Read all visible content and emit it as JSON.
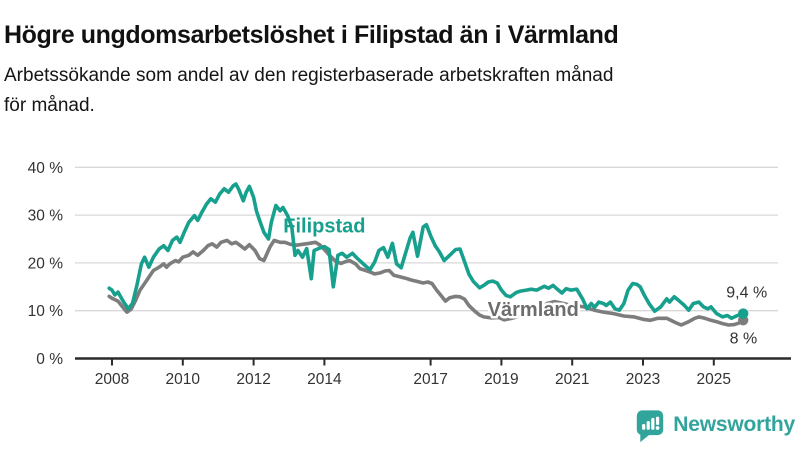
{
  "header": {
    "title": "Högre ungdomsarbetslöshet i Filipstad än i Värmland",
    "subtitle_lines": [
      "Arbetssökande som andel av den registerbaserade arbetskraften månad",
      "för månad."
    ]
  },
  "chart_data": {
    "type": "line",
    "x_unit": "decimal_year",
    "grid": "horizontal",
    "xlim": [
      2007.9,
      2026.3
    ],
    "ylim": [
      0,
      42
    ],
    "x_ticks": [
      {
        "value": 2008,
        "label": "2008"
      },
      {
        "value": 2010,
        "label": "2010"
      },
      {
        "value": 2012,
        "label": "2012"
      },
      {
        "value": 2014,
        "label": "2014"
      },
      {
        "value": 2017,
        "label": "2017"
      },
      {
        "value": 2019,
        "label": "2019"
      },
      {
        "value": 2021,
        "label": "2021"
      },
      {
        "value": 2023,
        "label": "2023"
      },
      {
        "value": 2025,
        "label": "2025"
      }
    ],
    "y_ticks": [
      {
        "value": 0,
        "label": "0 %"
      },
      {
        "value": 10,
        "label": "10 %"
      },
      {
        "value": 20,
        "label": "20 %"
      },
      {
        "value": 30,
        "label": "30 %"
      },
      {
        "value": 40,
        "label": "40 %"
      }
    ],
    "colors": {
      "gridline": "#d9d9d9",
      "axis": "#2b2b2b",
      "tick_text": "#333333"
    },
    "series": [
      {
        "name": "Värmland",
        "color": "#7d7d7d",
        "label_color": "#6d6d6d",
        "label_halo": "#ffffff",
        "label_anchor": {
          "x": 2019.9,
          "y": 10.4
        },
        "end_label": "8 %",
        "points": [
          [
            2007.92,
            13.0
          ],
          [
            2008.0,
            12.6
          ],
          [
            2008.17,
            12.0
          ],
          [
            2008.33,
            10.5
          ],
          [
            2008.42,
            9.7
          ],
          [
            2008.54,
            10.3
          ],
          [
            2008.67,
            12.2
          ],
          [
            2008.79,
            14.3
          ],
          [
            2008.92,
            15.7
          ],
          [
            2009.04,
            17.0
          ],
          [
            2009.17,
            18.4
          ],
          [
            2009.33,
            19.1
          ],
          [
            2009.46,
            19.8
          ],
          [
            2009.54,
            19.1
          ],
          [
            2009.63,
            19.8
          ],
          [
            2009.79,
            20.5
          ],
          [
            2009.88,
            20.2
          ],
          [
            2010.0,
            21.2
          ],
          [
            2010.17,
            21.6
          ],
          [
            2010.29,
            22.3
          ],
          [
            2010.42,
            21.6
          ],
          [
            2010.58,
            22.6
          ],
          [
            2010.71,
            23.6
          ],
          [
            2010.83,
            24.0
          ],
          [
            2010.96,
            23.3
          ],
          [
            2011.08,
            24.3
          ],
          [
            2011.25,
            24.7
          ],
          [
            2011.38,
            24.0
          ],
          [
            2011.5,
            24.3
          ],
          [
            2011.63,
            23.6
          ],
          [
            2011.75,
            22.9
          ],
          [
            2011.88,
            23.8
          ],
          [
            2012.04,
            22.6
          ],
          [
            2012.17,
            20.9
          ],
          [
            2012.29,
            20.5
          ],
          [
            2012.46,
            23.3
          ],
          [
            2012.58,
            24.7
          ],
          [
            2012.75,
            24.3
          ],
          [
            2012.88,
            24.3
          ],
          [
            2013.04,
            23.9
          ],
          [
            2013.21,
            23.7
          ],
          [
            2013.38,
            23.9
          ],
          [
            2013.58,
            24.1
          ],
          [
            2013.75,
            24.3
          ],
          [
            2013.88,
            23.7
          ],
          [
            2014.0,
            22.8
          ],
          [
            2014.17,
            21.4
          ],
          [
            2014.29,
            20.5
          ],
          [
            2014.46,
            19.9
          ],
          [
            2014.58,
            20.2
          ],
          [
            2014.71,
            20.5
          ],
          [
            2014.88,
            19.8
          ],
          [
            2015.0,
            18.8
          ],
          [
            2015.17,
            18.4
          ],
          [
            2015.29,
            18.1
          ],
          [
            2015.42,
            17.7
          ],
          [
            2015.58,
            17.9
          ],
          [
            2015.71,
            18.3
          ],
          [
            2015.83,
            18.4
          ],
          [
            2015.96,
            17.4
          ],
          [
            2016.13,
            17.1
          ],
          [
            2016.29,
            16.8
          ],
          [
            2016.46,
            16.4
          ],
          [
            2016.63,
            16.1
          ],
          [
            2016.79,
            15.8
          ],
          [
            2016.92,
            16.0
          ],
          [
            2017.04,
            15.7
          ],
          [
            2017.17,
            14.3
          ],
          [
            2017.29,
            13.2
          ],
          [
            2017.42,
            12.0
          ],
          [
            2017.54,
            12.7
          ],
          [
            2017.71,
            13.0
          ],
          [
            2017.83,
            12.9
          ],
          [
            2017.96,
            12.4
          ],
          [
            2018.08,
            11.1
          ],
          [
            2018.25,
            9.9
          ],
          [
            2018.38,
            9.1
          ],
          [
            2018.5,
            8.7
          ],
          [
            2018.71,
            8.5
          ],
          [
            2018.92,
            8.6
          ],
          [
            2019.08,
            8.1
          ],
          [
            2019.29,
            8.4
          ],
          [
            2019.5,
            8.8
          ],
          [
            2019.71,
            9.2
          ],
          [
            2019.92,
            9.7
          ],
          [
            2020.13,
            10.4
          ],
          [
            2020.29,
            11.5
          ],
          [
            2020.5,
            11.9
          ],
          [
            2020.71,
            11.6
          ],
          [
            2020.92,
            11.2
          ],
          [
            2021.13,
            11.0
          ],
          [
            2021.33,
            10.8
          ],
          [
            2021.63,
            10.1
          ],
          [
            2021.88,
            9.7
          ],
          [
            2022.17,
            9.4
          ],
          [
            2022.46,
            8.9
          ],
          [
            2022.75,
            8.7
          ],
          [
            2023.0,
            8.2
          ],
          [
            2023.21,
            8.0
          ],
          [
            2023.42,
            8.4
          ],
          [
            2023.67,
            8.4
          ],
          [
            2023.92,
            7.5
          ],
          [
            2024.08,
            7.0
          ],
          [
            2024.29,
            7.7
          ],
          [
            2024.46,
            8.4
          ],
          [
            2024.58,
            8.7
          ],
          [
            2024.75,
            8.4
          ],
          [
            2024.92,
            8.0
          ],
          [
            2025.08,
            7.7
          ],
          [
            2025.25,
            7.3
          ],
          [
            2025.42,
            7.0
          ],
          [
            2025.58,
            7.1
          ],
          [
            2025.71,
            7.4
          ],
          [
            2025.83,
            8.0
          ]
        ]
      },
      {
        "name": "Filipstad",
        "color": "#17a08d",
        "label_color": "#17a08d",
        "label_halo": "none",
        "label_anchor": {
          "x": 2014.0,
          "y": 27.8
        },
        "end_label": "9,4 %",
        "points": [
          [
            2007.92,
            14.7
          ],
          [
            2008.0,
            14.3
          ],
          [
            2008.08,
            13.3
          ],
          [
            2008.17,
            13.9
          ],
          [
            2008.33,
            11.8
          ],
          [
            2008.46,
            10.4
          ],
          [
            2008.58,
            11.5
          ],
          [
            2008.71,
            15.5
          ],
          [
            2008.83,
            19.8
          ],
          [
            2008.92,
            21.2
          ],
          [
            2009.04,
            19.1
          ],
          [
            2009.17,
            21.2
          ],
          [
            2009.33,
            22.9
          ],
          [
            2009.46,
            23.6
          ],
          [
            2009.58,
            22.6
          ],
          [
            2009.71,
            24.7
          ],
          [
            2009.83,
            25.4
          ],
          [
            2009.92,
            24.3
          ],
          [
            2010.04,
            26.4
          ],
          [
            2010.17,
            28.5
          ],
          [
            2010.33,
            29.9
          ],
          [
            2010.42,
            28.9
          ],
          [
            2010.54,
            30.6
          ],
          [
            2010.67,
            32.3
          ],
          [
            2010.79,
            33.4
          ],
          [
            2010.92,
            32.7
          ],
          [
            2011.04,
            34.4
          ],
          [
            2011.17,
            35.5
          ],
          [
            2011.29,
            34.8
          ],
          [
            2011.42,
            36.1
          ],
          [
            2011.5,
            36.5
          ],
          [
            2011.58,
            35.4
          ],
          [
            2011.71,
            33.0
          ],
          [
            2011.79,
            34.8
          ],
          [
            2011.88,
            36.0
          ],
          [
            2012.0,
            33.7
          ],
          [
            2012.08,
            30.9
          ],
          [
            2012.17,
            28.9
          ],
          [
            2012.29,
            26.4
          ],
          [
            2012.42,
            25.0
          ],
          [
            2012.5,
            28.5
          ],
          [
            2012.63,
            32.0
          ],
          [
            2012.75,
            30.9
          ],
          [
            2012.83,
            31.6
          ],
          [
            2012.96,
            29.9
          ],
          [
            2013.08,
            27.5
          ],
          [
            2013.17,
            21.6
          ],
          [
            2013.25,
            22.6
          ],
          [
            2013.38,
            21.2
          ],
          [
            2013.5,
            23.0
          ],
          [
            2013.63,
            16.7
          ],
          [
            2013.71,
            22.6
          ],
          [
            2013.83,
            23.0
          ],
          [
            2014.0,
            23.4
          ],
          [
            2014.13,
            22.8
          ],
          [
            2014.25,
            15.0
          ],
          [
            2014.38,
            21.6
          ],
          [
            2014.5,
            22.0
          ],
          [
            2014.63,
            21.2
          ],
          [
            2014.79,
            22.0
          ],
          [
            2014.92,
            21.0
          ],
          [
            2015.04,
            20.2
          ],
          [
            2015.17,
            19.3
          ],
          [
            2015.29,
            18.6
          ],
          [
            2015.42,
            20.2
          ],
          [
            2015.54,
            22.6
          ],
          [
            2015.67,
            23.2
          ],
          [
            2015.79,
            21.2
          ],
          [
            2015.92,
            24.1
          ],
          [
            2016.04,
            19.8
          ],
          [
            2016.17,
            19.0
          ],
          [
            2016.33,
            23.0
          ],
          [
            2016.42,
            25.2
          ],
          [
            2016.5,
            26.4
          ],
          [
            2016.63,
            21.4
          ],
          [
            2016.79,
            27.5
          ],
          [
            2016.88,
            28.0
          ],
          [
            2017.0,
            25.7
          ],
          [
            2017.13,
            23.6
          ],
          [
            2017.25,
            22.3
          ],
          [
            2017.38,
            20.5
          ],
          [
            2017.54,
            21.6
          ],
          [
            2017.71,
            22.8
          ],
          [
            2017.83,
            22.9
          ],
          [
            2017.96,
            20.2
          ],
          [
            2018.08,
            17.7
          ],
          [
            2018.21,
            16.1
          ],
          [
            2018.38,
            14.8
          ],
          [
            2018.5,
            15.3
          ],
          [
            2018.63,
            16.0
          ],
          [
            2018.75,
            16.2
          ],
          [
            2018.88,
            15.8
          ],
          [
            2019.0,
            14.3
          ],
          [
            2019.13,
            13.2
          ],
          [
            2019.25,
            12.9
          ],
          [
            2019.42,
            13.8
          ],
          [
            2019.54,
            14.1
          ],
          [
            2019.71,
            14.3
          ],
          [
            2019.83,
            14.5
          ],
          [
            2020.0,
            14.3
          ],
          [
            2020.21,
            15.1
          ],
          [
            2020.33,
            14.7
          ],
          [
            2020.46,
            15.3
          ],
          [
            2020.58,
            14.5
          ],
          [
            2020.71,
            13.7
          ],
          [
            2020.83,
            14.6
          ],
          [
            2020.96,
            14.3
          ],
          [
            2021.13,
            14.5
          ],
          [
            2021.29,
            12.5
          ],
          [
            2021.42,
            10.4
          ],
          [
            2021.54,
            11.5
          ],
          [
            2021.63,
            10.7
          ],
          [
            2021.75,
            11.8
          ],
          [
            2021.88,
            11.5
          ],
          [
            2021.96,
            11.1
          ],
          [
            2022.08,
            11.8
          ],
          [
            2022.21,
            10.4
          ],
          [
            2022.33,
            10.1
          ],
          [
            2022.46,
            11.5
          ],
          [
            2022.58,
            14.3
          ],
          [
            2022.71,
            15.7
          ],
          [
            2022.83,
            15.5
          ],
          [
            2022.92,
            15.0
          ],
          [
            2023.04,
            13.2
          ],
          [
            2023.17,
            11.5
          ],
          [
            2023.33,
            9.9
          ],
          [
            2023.5,
            10.8
          ],
          [
            2023.67,
            12.5
          ],
          [
            2023.75,
            11.8
          ],
          [
            2023.88,
            12.9
          ],
          [
            2024.0,
            12.2
          ],
          [
            2024.17,
            11.1
          ],
          [
            2024.29,
            10.1
          ],
          [
            2024.42,
            11.5
          ],
          [
            2024.58,
            11.8
          ],
          [
            2024.71,
            10.8
          ],
          [
            2024.83,
            10.4
          ],
          [
            2024.92,
            10.8
          ],
          [
            2025.08,
            9.4
          ],
          [
            2025.25,
            8.7
          ],
          [
            2025.38,
            9.0
          ],
          [
            2025.5,
            8.4
          ],
          [
            2025.67,
            9.0
          ],
          [
            2025.83,
            9.4
          ]
        ]
      }
    ]
  },
  "footer": {
    "brand": "Newsworthy",
    "brand_color": "#31a49c",
    "logo_icon": "newsworthy-speech-bubble-bar-chart-icon"
  }
}
